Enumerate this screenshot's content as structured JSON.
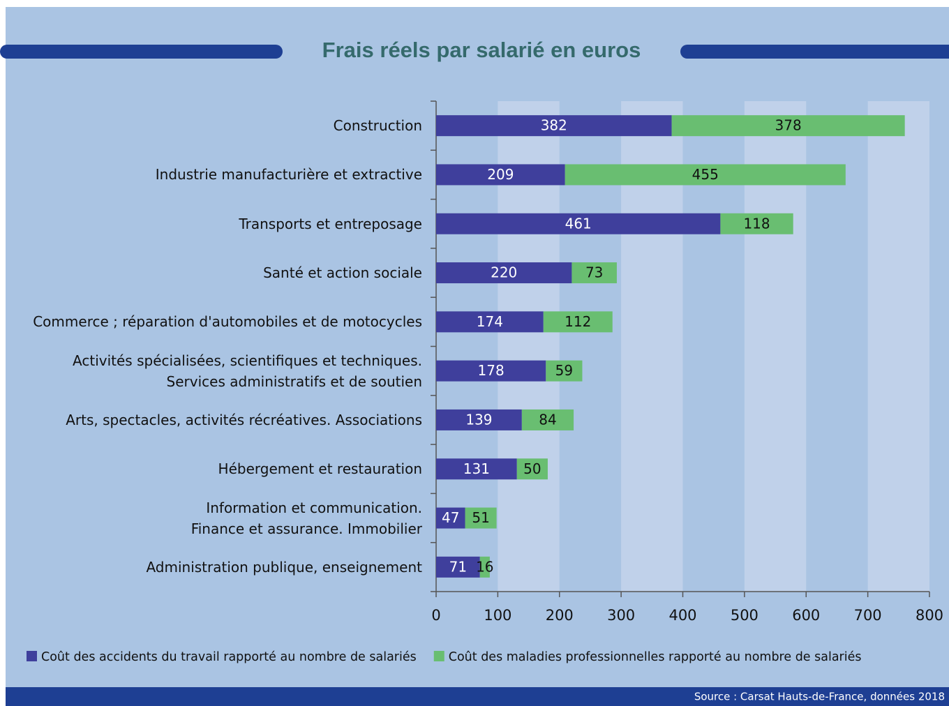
{
  "chart_data": {
    "type": "stacked-bar-horizontal",
    "title": "Frais réels par salarié en euros",
    "categories": [
      "Construction",
      "Industrie manufacturière et extractive",
      "Transports et entreposage",
      "Santé et action sociale",
      "Commerce ; réparation d'automobiles et de motocycles",
      "Activités spécialisées, scientifiques et techniques.\nServices administratifs et de soutien",
      "Arts, spectacles, activités récréatives. Associations",
      "Hébergement et restauration",
      "Information et communication.\nFinance et assurance. Immobilier",
      "Administration publique, enseignement"
    ],
    "series": [
      {
        "name": "Coût des accidents du travail rapporté au nombre de salariés",
        "color": "#3f3f9c",
        "values": [
          382,
          209,
          461,
          220,
          174,
          178,
          139,
          131,
          47,
          71
        ]
      },
      {
        "name": "Coût des maladies professionnelles rapporté au nombre de salariés",
        "color": "#69be71",
        "values": [
          378,
          455,
          118,
          73,
          112,
          59,
          84,
          50,
          51,
          16
        ]
      }
    ],
    "xlim": [
      0,
      800
    ],
    "xticks": [
      0,
      100,
      200,
      300,
      400,
      500,
      600,
      700,
      800
    ],
    "grid": true,
    "legend": "bottom",
    "source": "Source : Carsat Hauts-de-France, données 2018"
  }
}
